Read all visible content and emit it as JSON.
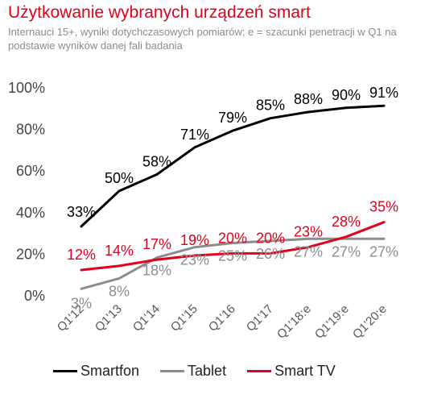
{
  "title": "Użytkowanie wybranych urządzeń smart",
  "subtitle": "Internauci 15+, wyniki dotychczasowych pomiarów; e = szacunki penetracji w Q1 na podstawie wyników danej fali badania",
  "chart_data": {
    "type": "line",
    "categories": [
      "Q1'12",
      "Q1'13",
      "Q1'14",
      "Q1'15",
      "Q1'16",
      "Q1'17",
      "Q1'18:e",
      "Q1'19:e",
      "Q1'20:e"
    ],
    "ylim": [
      0,
      100
    ],
    "yticks": [
      "0%",
      "20%",
      "40%",
      "60%",
      "80%",
      "100%"
    ],
    "grid": false,
    "legend_position": "bottom",
    "series": [
      {
        "name": "Smartfon",
        "color": "#000000",
        "values": [
          33,
          50,
          58,
          71,
          79,
          85,
          88,
          90,
          91
        ],
        "labels": [
          "33%",
          "50%",
          "58%",
          "71%",
          "79%",
          "85%",
          "88%",
          "90%",
          "91%"
        ]
      },
      {
        "name": "Tablet",
        "color": "#8c8c8c",
        "values": [
          3,
          8,
          18,
          23,
          25,
          26,
          27,
          27,
          27
        ],
        "labels": [
          "3%",
          "8%",
          "18%",
          "23%",
          "25%",
          "26%",
          "27%",
          "27%",
          "27%"
        ]
      },
      {
        "name": "Smart TV",
        "color": "#e2001a",
        "values": [
          12,
          14,
          17,
          19,
          20,
          20,
          23,
          28,
          35
        ],
        "labels": [
          "12%",
          "14%",
          "17%",
          "19%",
          "20%",
          "20%",
          "23%",
          "28%",
          "35%"
        ]
      }
    ]
  }
}
